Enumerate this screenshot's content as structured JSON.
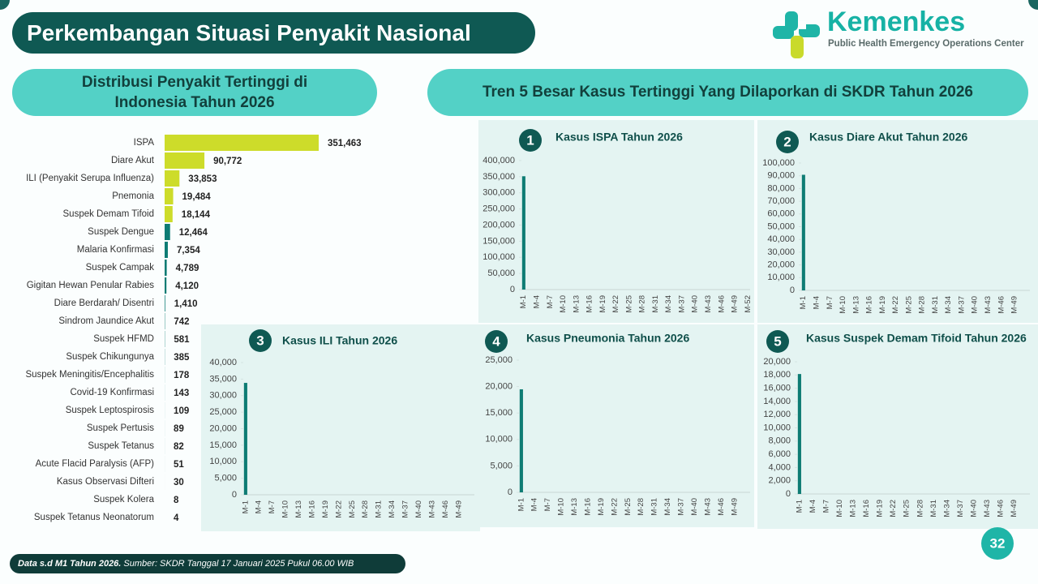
{
  "header": {
    "title": "Perkembangan Situasi Penyakit Nasional"
  },
  "logo": {
    "name": "Kemenkes",
    "subtitle": "Public Health Emergency Operations Center"
  },
  "right_panel": {
    "title": "Tren 5 Besar Kasus Tertinggi Yang Dilaporkan di SKDR Tahun 2026"
  },
  "footer": {
    "note": "Data s.d M1 Tahun 2026.",
    "source": "Sumber: SKDR Tanggal 17 Januari 2025 Pukul 06.00 WIB"
  },
  "page_number": 32,
  "chart_data": [
    {
      "type": "bar",
      "orientation": "horizontal",
      "title": "Distribusi Penyakit Tertinggi di Indonesia Tahun 2026",
      "categories": [
        "ISPA",
        "Diare Akut",
        "ILI (Penyakit Serupa Influenza)",
        "Pnemonia",
        "Suspek Demam Tifoid",
        "Suspek Dengue",
        "Malaria Konfirmasi",
        "Suspek Campak",
        "Gigitan Hewan Penular Rabies",
        "Diare Berdarah/ Disentri",
        "Sindrom Jaundice Akut",
        "Suspek HFMD",
        "Suspek Chikungunya",
        "Suspek Meningitis/Encephalitis",
        "Covid-19 Konfirmasi",
        "Suspek Leptospirosis",
        "Suspek Pertusis",
        "Suspek Tetanus",
        "Acute Flacid Paralysis (AFP)",
        "Kasus Observasi Difteri",
        "Suspek Kolera",
        "Suspek Tetanus Neonatorum"
      ],
      "values": [
        351463,
        90772,
        33853,
        19484,
        18144,
        12464,
        7354,
        4789,
        4120,
        1410,
        742,
        581,
        385,
        178,
        143,
        109,
        89,
        82,
        51,
        30,
        8,
        4
      ],
      "value_labels": [
        "351,463",
        "90,772",
        "33,853",
        "19,484",
        "18,144",
        "12,464",
        "7,354",
        "4,789",
        "4,120",
        "1,410",
        "742",
        "581",
        "385",
        "178",
        "143",
        "109",
        "89",
        "82",
        "51",
        "30",
        "8",
        "4"
      ],
      "colors": [
        "#cddc2a",
        "#cddc2a",
        "#cddc2a",
        "#cddc2a",
        "#cddc2a",
        "#0e7c74",
        "#0e7c74",
        "#0e7c74",
        "#0e7c74",
        "#0e7c74",
        "#0e7c74",
        "#0e7c74",
        "#0e7c74",
        "#0e7c74",
        "#0e7c74",
        "#0e7c74",
        "#0e7c74",
        "#0e7c74",
        "#0e7c74",
        "#0e7c74",
        "#0e7c74",
        "#0e7c74"
      ]
    },
    {
      "type": "bar",
      "badge": 1,
      "title": "Kasus ISPA Tahun 2026",
      "color": "#0e7c74",
      "categories": [
        "M-1",
        null,
        null,
        "M-4",
        null,
        null,
        "M-7",
        null,
        null,
        "M-10",
        null,
        null,
        "M-13",
        null,
        null,
        "M-16",
        null,
        null,
        "M-19",
        null,
        null,
        "M-22",
        null,
        null,
        "M-25",
        null,
        null,
        "M-28",
        null,
        null,
        "M-31",
        null,
        null,
        "M-34",
        null,
        null,
        "M-37",
        null,
        null,
        "M-40",
        null,
        null,
        "M-43",
        null,
        null,
        "M-46",
        null,
        null,
        "M-49",
        null,
        null,
        "M-52"
      ],
      "values": [
        351463,
        null,
        null,
        null,
        null,
        null,
        null,
        null,
        null,
        null,
        null,
        null,
        null,
        null,
        null,
        null,
        null,
        null,
        null,
        null,
        null,
        null,
        null,
        null,
        null,
        null,
        null,
        null,
        null,
        null,
        null,
        null,
        null,
        null,
        null,
        null,
        null,
        null,
        null,
        null,
        null,
        null,
        null,
        null,
        null,
        null,
        null,
        null,
        null,
        null,
        null,
        null
      ],
      "ylim": [
        0,
        400000
      ],
      "yticks": [
        0,
        {
          "value": 50000,
          "label": "50,000"
        },
        {
          "value": 100000,
          "label": "100,000"
        },
        {
          "value": 150000,
          "label": "150,000"
        },
        {
          "value": 200000,
          "label": "200,000"
        },
        {
          "value": 250000,
          "label": "250,000"
        },
        {
          "value": 300000,
          "label": "300,000"
        },
        {
          "value": 350000,
          "label": "350,000"
        },
        {
          "value": 400000,
          "label": "400,000"
        }
      ]
    },
    {
      "type": "bar",
      "badge": 2,
      "title": "Kasus Diare Akut Tahun 2026",
      "color": "#0e7c74",
      "categories": [
        "M-1",
        null,
        null,
        "M-4",
        null,
        null,
        "M-7",
        null,
        null,
        "M-10",
        null,
        null,
        "M-13",
        null,
        null,
        "M-16",
        null,
        null,
        "M-19",
        null,
        null,
        "M-22",
        null,
        null,
        "M-25",
        null,
        null,
        "M-28",
        null,
        null,
        "M-31",
        null,
        null,
        "M-34",
        null,
        null,
        "M-37",
        null,
        null,
        "M-40",
        null,
        null,
        "M-43",
        null,
        null,
        "M-46",
        null,
        null,
        "M-49",
        null,
        null,
        null
      ],
      "values": [
        90772,
        null,
        null,
        null,
        null,
        null,
        null,
        null,
        null,
        null,
        null,
        null,
        null,
        null,
        null,
        null,
        null,
        null,
        null,
        null,
        null,
        null,
        null,
        null,
        null,
        null,
        null,
        null,
        null,
        null,
        null,
        null,
        null,
        null,
        null,
        null,
        null,
        null,
        null,
        null,
        null,
        null,
        null,
        null,
        null,
        null,
        null,
        null,
        null,
        null,
        null,
        null
      ],
      "ylim": [
        0,
        100000
      ],
      "yticks": [
        0,
        {
          "value": 10000,
          "label": "10,000"
        },
        {
          "value": 20000,
          "label": "20,000"
        },
        {
          "value": 30000,
          "label": "30,000"
        },
        {
          "value": 40000,
          "label": "40,000"
        },
        {
          "value": 50000,
          "label": "50,000"
        },
        {
          "value": 60000,
          "label": "60,000"
        },
        {
          "value": 70000,
          "label": "70,000"
        },
        {
          "value": 80000,
          "label": "80,000"
        },
        {
          "value": 90000,
          "label": "90,000"
        },
        {
          "value": 100000,
          "label": "100,000"
        }
      ]
    },
    {
      "type": "bar",
      "badge": 3,
      "title": "Kasus ILI Tahun 2026",
      "color": "#0e7c74",
      "categories": [
        "M-1",
        null,
        null,
        "M-4",
        null,
        null,
        "M-7",
        null,
        null,
        "M-10",
        null,
        null,
        "M-13",
        null,
        null,
        "M-16",
        null,
        null,
        "M-19",
        null,
        null,
        "M-22",
        null,
        null,
        "M-25",
        null,
        null,
        "M-28",
        null,
        null,
        "M-31",
        null,
        null,
        "M-34",
        null,
        null,
        "M-37",
        null,
        null,
        "M-40",
        null,
        null,
        "M-43",
        null,
        null,
        "M-46",
        null,
        null,
        "M-49",
        null,
        null,
        null
      ],
      "values": [
        33853,
        null,
        null,
        null,
        null,
        null,
        null,
        null,
        null,
        null,
        null,
        null,
        null,
        null,
        null,
        null,
        null,
        null,
        null,
        null,
        null,
        null,
        null,
        null,
        null,
        null,
        null,
        null,
        null,
        null,
        null,
        null,
        null,
        null,
        null,
        null,
        null,
        null,
        null,
        null,
        null,
        null,
        null,
        null,
        null,
        null,
        null,
        null,
        null,
        null,
        null,
        null
      ],
      "ylim": [
        0,
        40000
      ],
      "yticks": [
        0,
        {
          "value": 5000,
          "label": "5,000"
        },
        {
          "value": 10000,
          "label": "10,000"
        },
        {
          "value": 15000,
          "label": "15,000"
        },
        {
          "value": 20000,
          "label": "20,000"
        },
        {
          "value": 25000,
          "label": "25,000"
        },
        {
          "value": 30000,
          "label": "30,000"
        },
        {
          "value": 35000,
          "label": "35,000"
        },
        {
          "value": 40000,
          "label": "40,000"
        }
      ]
    },
    {
      "type": "bar",
      "badge": 4,
      "title": "Kasus Pneumonia Tahun 2026",
      "color": "#0e7c74",
      "categories": [
        "M-1",
        null,
        null,
        "M-4",
        null,
        null,
        "M-7",
        null,
        null,
        "M-10",
        null,
        null,
        "M-13",
        null,
        null,
        "M-16",
        null,
        null,
        "M-19",
        null,
        null,
        "M-22",
        null,
        null,
        "M-25",
        null,
        null,
        "M-28",
        null,
        null,
        "M-31",
        null,
        null,
        "M-34",
        null,
        null,
        "M-37",
        null,
        null,
        "M-40",
        null,
        null,
        "M-43",
        null,
        null,
        "M-46",
        null,
        null,
        "M-49",
        null,
        null,
        null
      ],
      "values": [
        19484,
        null,
        null,
        null,
        null,
        null,
        null,
        null,
        null,
        null,
        null,
        null,
        null,
        null,
        null,
        null,
        null,
        null,
        null,
        null,
        null,
        null,
        null,
        null,
        null,
        null,
        null,
        null,
        null,
        null,
        null,
        null,
        null,
        null,
        null,
        null,
        null,
        null,
        null,
        null,
        null,
        null,
        null,
        null,
        null,
        null,
        null,
        null,
        null,
        null,
        null,
        null
      ],
      "ylim": [
        0,
        25000
      ],
      "yticks": [
        0,
        {
          "value": 5000,
          "label": "5,000"
        },
        {
          "value": 10000,
          "label": "10,000"
        },
        {
          "value": 15000,
          "label": "15,000"
        },
        {
          "value": 20000,
          "label": "20,000"
        },
        {
          "value": 25000,
          "label": "25,000"
        }
      ]
    },
    {
      "type": "bar",
      "badge": 5,
      "title": "Kasus Suspek Demam Tifoid Tahun 2026",
      "color": "#0e7c74",
      "categories": [
        "M-1",
        null,
        null,
        "M-4",
        null,
        null,
        "M-7",
        null,
        null,
        "M-10",
        null,
        null,
        "M-13",
        null,
        null,
        "M-16",
        null,
        null,
        "M-19",
        null,
        null,
        "M-22",
        null,
        null,
        "M-25",
        null,
        null,
        "M-28",
        null,
        null,
        "M-31",
        null,
        null,
        "M-34",
        null,
        null,
        "M-37",
        null,
        null,
        "M-40",
        null,
        null,
        "M-43",
        null,
        null,
        "M-46",
        null,
        null,
        "M-49",
        null,
        null,
        null
      ],
      "values": [
        18144,
        null,
        null,
        null,
        null,
        null,
        null,
        null,
        null,
        null,
        null,
        null,
        null,
        null,
        null,
        null,
        null,
        null,
        null,
        null,
        null,
        null,
        null,
        null,
        null,
        null,
        null,
        null,
        null,
        null,
        null,
        null,
        null,
        null,
        null,
        null,
        null,
        null,
        null,
        null,
        null,
        null,
        null,
        null,
        null,
        null,
        null,
        null,
        null,
        null,
        null,
        null
      ],
      "ylim": [
        0,
        20000
      ],
      "yticks": [
        0,
        {
          "value": 2000,
          "label": "2,000"
        },
        {
          "value": 4000,
          "label": "4,000"
        },
        {
          "value": 6000,
          "label": "6,000"
        },
        {
          "value": 8000,
          "label": "8,000"
        },
        {
          "value": 10000,
          "label": "10,000"
        },
        {
          "value": 12000,
          "label": "12,000"
        },
        {
          "value": 14000,
          "label": "14,000"
        },
        {
          "value": 16000,
          "label": "16,000"
        },
        {
          "value": 18000,
          "label": "18,000"
        },
        {
          "value": 20000,
          "label": "20,000"
        }
      ]
    }
  ]
}
